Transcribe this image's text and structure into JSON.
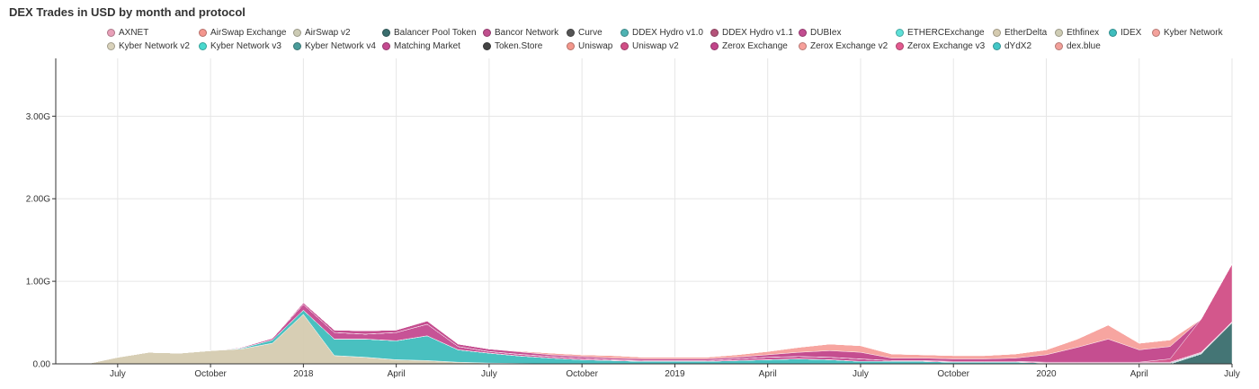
{
  "title": "DEX Trades in USD by month and protocol",
  "colors": {
    "grid": "#e6e6e6",
    "axis": "#333333"
  },
  "chart_data": {
    "type": "area",
    "stacked": true,
    "title": "DEX Trades in USD by month and protocol",
    "xlabel": "",
    "ylabel": "",
    "x": [
      "2017-05",
      "2017-06",
      "2017-07",
      "2017-08",
      "2017-09",
      "2017-10",
      "2017-11",
      "2017-12",
      "2018-01",
      "2018-02",
      "2018-03",
      "2018-04",
      "2018-05",
      "2018-06",
      "2018-07",
      "2018-08",
      "2018-09",
      "2018-10",
      "2018-11",
      "2018-12",
      "2019-01",
      "2019-02",
      "2019-03",
      "2019-04",
      "2019-05",
      "2019-06",
      "2019-07",
      "2019-08",
      "2019-09",
      "2019-10",
      "2019-11",
      "2019-12",
      "2020-01",
      "2020-02",
      "2020-03",
      "2020-04",
      "2020-05",
      "2020-06",
      "2020-07"
    ],
    "x_ticks": [
      {
        "value": "2017-07",
        "label": "July"
      },
      {
        "value": "2017-10",
        "label": "October"
      },
      {
        "value": "2018-01",
        "label": "2018"
      },
      {
        "value": "2018-04",
        "label": "April"
      },
      {
        "value": "2018-07",
        "label": "July"
      },
      {
        "value": "2018-10",
        "label": "October"
      },
      {
        "value": "2019-01",
        "label": "2019"
      },
      {
        "value": "2019-04",
        "label": "April"
      },
      {
        "value": "2019-07",
        "label": "July"
      },
      {
        "value": "2019-10",
        "label": "October"
      },
      {
        "value": "2020-01",
        "label": "2020"
      },
      {
        "value": "2020-04",
        "label": "April"
      },
      {
        "value": "2020-07",
        "label": "July"
      }
    ],
    "y_ticks": [
      {
        "value": 0,
        "label": "0.00"
      },
      {
        "value": 1000000000,
        "label": "1.00G"
      },
      {
        "value": 2000000000,
        "label": "2.00G"
      },
      {
        "value": 3000000000,
        "label": "3.00G"
      }
    ],
    "ylim": [
      0,
      3700000000
    ],
    "grid": true,
    "legend_position": "top",
    "series": [
      {
        "name": "AXNET",
        "color": "#e8a0b8",
        "values": [
          0,
          0,
          0,
          0,
          0,
          0,
          0,
          0,
          0,
          0,
          0,
          0,
          0,
          0,
          0,
          0,
          0,
          0,
          0,
          0,
          0,
          0,
          0,
          0,
          0,
          0,
          0,
          0,
          0,
          0,
          0,
          0,
          0,
          0,
          0,
          0,
          0,
          0,
          0
        ]
      },
      {
        "name": "AirSwap Exchange",
        "color": "#f4968e",
        "values": [
          0,
          0,
          0,
          0,
          0,
          0,
          0,
          0,
          0,
          0,
          0,
          0,
          0,
          0,
          0,
          0,
          0,
          0,
          0,
          0,
          0,
          0,
          0,
          0,
          0,
          0,
          0,
          0,
          0,
          0,
          0,
          0,
          0,
          0,
          0,
          0,
          0,
          0,
          0
        ]
      },
      {
        "name": "AirSwap v2",
        "color": "#cccbb4",
        "values": [
          0,
          0,
          0,
          0,
          0,
          0,
          0,
          0,
          0,
          0,
          0,
          0,
          0,
          0,
          0,
          0,
          0,
          0,
          0,
          0,
          0,
          0,
          0,
          0,
          0,
          0,
          0,
          0,
          0,
          0,
          0,
          0,
          0,
          0,
          0,
          0,
          0,
          0,
          0
        ]
      },
      {
        "name": "Balancer Pool Token",
        "color": "#3a6e6e",
        "values": [
          0,
          0,
          0,
          0,
          0,
          0,
          0,
          0,
          0,
          0,
          0,
          0,
          0,
          0,
          0,
          0,
          0,
          0,
          0,
          0,
          0,
          0,
          0,
          0,
          0,
          0,
          0,
          0,
          0,
          0,
          0,
          0,
          0,
          0,
          0,
          0,
          0,
          120000000,
          500000000
        ]
      },
      {
        "name": "Bancor Network",
        "color": "#c04f8e",
        "values": [
          0,
          0,
          0,
          0,
          0,
          0,
          0,
          0,
          0,
          0,
          0,
          0,
          0,
          0,
          0,
          0,
          0,
          0,
          0,
          0,
          0,
          0,
          0,
          0,
          0,
          0,
          0,
          0,
          0,
          0,
          0,
          0,
          0,
          0,
          0,
          0,
          0,
          0,
          0
        ]
      },
      {
        "name": "Curve",
        "color": "#555555",
        "values": [
          0,
          0,
          0,
          0,
          0,
          0,
          0,
          0,
          0,
          0,
          0,
          0,
          0,
          0,
          0,
          0,
          0,
          0,
          0,
          0,
          0,
          0,
          0,
          0,
          0,
          0,
          0,
          0,
          0,
          0,
          0,
          0,
          0,
          0,
          0,
          0,
          0,
          0,
          0
        ]
      },
      {
        "name": "DDEX Hydro v1.0",
        "color": "#4fb3b3",
        "values": [
          0,
          0,
          0,
          0,
          0,
          0,
          0,
          0,
          0,
          0,
          0,
          0,
          0,
          0,
          0,
          0,
          0,
          0,
          0,
          0,
          0,
          0,
          0,
          0,
          0,
          0,
          0,
          0,
          0,
          0,
          0,
          0,
          0,
          0,
          0,
          0,
          0,
          0,
          0
        ]
      },
      {
        "name": "DDEX Hydro v1.1",
        "color": "#b5537a",
        "values": [
          0,
          0,
          0,
          0,
          0,
          0,
          0,
          0,
          0,
          0,
          0,
          0,
          0,
          0,
          0,
          0,
          0,
          0,
          0,
          0,
          0,
          0,
          0,
          0,
          0,
          0,
          0,
          0,
          0,
          0,
          0,
          0,
          0,
          0,
          0,
          0,
          0,
          0,
          0
        ]
      },
      {
        "name": "DUBIex",
        "color": "#c24d90",
        "values": [
          0,
          0,
          0,
          0,
          0,
          0,
          0,
          0,
          0,
          0,
          0,
          0,
          0,
          0,
          0,
          0,
          0,
          0,
          0,
          0,
          0,
          0,
          0,
          0,
          0,
          0,
          0,
          0,
          0,
          0,
          0,
          0,
          0,
          0,
          0,
          0,
          0,
          0,
          0
        ]
      },
      {
        "name": "ETHERCExchange",
        "color": "#5ee0d8",
        "values": [
          0,
          0,
          0,
          0,
          0,
          0,
          0,
          0,
          0,
          0,
          0,
          0,
          0,
          0,
          0,
          0,
          0,
          0,
          0,
          0,
          0,
          0,
          0,
          0,
          0,
          0,
          0,
          0,
          0,
          0,
          0,
          0,
          0,
          0,
          0,
          0,
          0,
          0,
          0
        ]
      },
      {
        "name": "EtherDelta",
        "color": "#d5cbb0",
        "values": [
          0,
          0,
          80000000,
          140000000,
          130000000,
          160000000,
          180000000,
          250000000,
          600000000,
          100000000,
          80000000,
          50000000,
          40000000,
          20000000,
          10000000,
          5000000,
          0,
          0,
          0,
          0,
          0,
          0,
          0,
          0,
          0,
          0,
          0,
          0,
          0,
          0,
          0,
          0,
          0,
          0,
          0,
          0,
          0,
          0,
          0
        ]
      },
      {
        "name": "Ethfinex",
        "color": "#cfcdb5",
        "values": [
          0,
          0,
          0,
          0,
          0,
          0,
          0,
          0,
          0,
          0,
          0,
          0,
          0,
          0,
          0,
          0,
          0,
          0,
          0,
          0,
          0,
          0,
          0,
          0,
          0,
          0,
          0,
          0,
          0,
          0,
          0,
          0,
          0,
          0,
          0,
          0,
          0,
          0,
          0
        ]
      },
      {
        "name": "IDEX",
        "color": "#3fbdbd",
        "values": [
          0,
          0,
          0,
          0,
          0,
          0,
          10000000,
          40000000,
          50000000,
          200000000,
          220000000,
          230000000,
          300000000,
          150000000,
          120000000,
          90000000,
          70000000,
          50000000,
          40000000,
          30000000,
          30000000,
          30000000,
          40000000,
          50000000,
          60000000,
          50000000,
          30000000,
          30000000,
          30000000,
          20000000,
          20000000,
          20000000,
          10000000,
          10000000,
          10000000,
          10000000,
          10000000,
          10000000,
          0
        ]
      },
      {
        "name": "Kyber Network",
        "color": "#f4a29c",
        "values": [
          0,
          0,
          0,
          0,
          0,
          0,
          0,
          0,
          0,
          0,
          0,
          0,
          0,
          0,
          0,
          0,
          0,
          0,
          0,
          0,
          0,
          0,
          0,
          0,
          0,
          0,
          0,
          0,
          0,
          0,
          0,
          0,
          0,
          0,
          0,
          0,
          0,
          0,
          0
        ]
      },
      {
        "name": "Kyber Network v2",
        "color": "#d9d2bb",
        "values": [
          0,
          0,
          0,
          0,
          0,
          0,
          0,
          0,
          0,
          0,
          0,
          0,
          0,
          0,
          0,
          0,
          0,
          0,
          0,
          0,
          0,
          0,
          0,
          0,
          0,
          0,
          0,
          0,
          0,
          0,
          0,
          0,
          0,
          0,
          0,
          0,
          0,
          0,
          0
        ]
      },
      {
        "name": "Kyber Network v3",
        "color": "#49d9ce",
        "values": [
          0,
          0,
          0,
          0,
          0,
          0,
          0,
          0,
          0,
          0,
          0,
          0,
          0,
          0,
          0,
          0,
          0,
          0,
          0,
          0,
          0,
          0,
          0,
          0,
          0,
          0,
          0,
          0,
          0,
          0,
          0,
          0,
          0,
          0,
          0,
          0,
          0,
          0,
          0
        ]
      },
      {
        "name": "Kyber Network v4",
        "color": "#4a9c9a",
        "values": [
          0,
          0,
          0,
          0,
          0,
          0,
          0,
          0,
          0,
          0,
          0,
          0,
          0,
          0,
          0,
          0,
          0,
          0,
          0,
          0,
          0,
          0,
          0,
          0,
          0,
          0,
          0,
          0,
          0,
          0,
          0,
          0,
          0,
          0,
          0,
          0,
          0,
          0,
          0
        ]
      },
      {
        "name": "Matching Market",
        "color": "#c44a90",
        "values": [
          0,
          0,
          0,
          0,
          0,
          0,
          10000000,
          20000000,
          70000000,
          80000000,
          60000000,
          100000000,
          140000000,
          40000000,
          20000000,
          20000000,
          20000000,
          20000000,
          10000000,
          10000000,
          10000000,
          10000000,
          20000000,
          30000000,
          30000000,
          30000000,
          30000000,
          10000000,
          10000000,
          10000000,
          10000000,
          10000000,
          10000000,
          10000000,
          10000000,
          10000000,
          10000000,
          10000000,
          10000000
        ]
      },
      {
        "name": "Token.Store",
        "color": "#444444",
        "values": [
          0,
          0,
          0,
          0,
          0,
          0,
          0,
          0,
          0,
          0,
          0,
          0,
          0,
          0,
          0,
          0,
          0,
          0,
          0,
          0,
          0,
          0,
          0,
          0,
          0,
          0,
          0,
          0,
          0,
          0,
          0,
          0,
          0,
          0,
          0,
          0,
          0,
          0,
          0
        ]
      },
      {
        "name": "Uniswap",
        "color": "#f3978c",
        "values": [
          0,
          0,
          0,
          0,
          0,
          0,
          0,
          0,
          0,
          0,
          0,
          0,
          0,
          0,
          0,
          0,
          0,
          0,
          0,
          0,
          0,
          0,
          0,
          0,
          0,
          0,
          0,
          0,
          0,
          0,
          0,
          0,
          0,
          0,
          0,
          0,
          0,
          0,
          0
        ]
      },
      {
        "name": "Uniswap v2",
        "color": "#d14e86",
        "values": [
          0,
          0,
          0,
          0,
          0,
          0,
          0,
          0,
          0,
          0,
          0,
          0,
          0,
          0,
          0,
          0,
          0,
          0,
          0,
          0,
          0,
          0,
          0,
          0,
          0,
          0,
          0,
          0,
          0,
          0,
          0,
          0,
          0,
          0,
          0,
          0,
          40000000,
          400000000,
          700000000
        ]
      },
      {
        "name": "Zerox Exchange",
        "color": "#c2458a",
        "values": [
          0,
          0,
          0,
          0,
          0,
          0,
          0,
          0,
          20000000,
          30000000,
          40000000,
          30000000,
          40000000,
          30000000,
          30000000,
          30000000,
          20000000,
          20000000,
          20000000,
          20000000,
          20000000,
          20000000,
          20000000,
          30000000,
          50000000,
          80000000,
          80000000,
          30000000,
          30000000,
          30000000,
          30000000,
          40000000,
          90000000,
          180000000,
          280000000,
          150000000,
          150000000,
          0,
          0
        ]
      },
      {
        "name": "Zerox Exchange v2",
        "color": "#f7a09b",
        "values": [
          0,
          0,
          0,
          0,
          0,
          0,
          0,
          0,
          0,
          0,
          0,
          0,
          0,
          0,
          0,
          10000000,
          20000000,
          20000000,
          30000000,
          20000000,
          20000000,
          20000000,
          30000000,
          40000000,
          60000000,
          80000000,
          80000000,
          50000000,
          40000000,
          40000000,
          40000000,
          50000000,
          60000000,
          100000000,
          170000000,
          80000000,
          80000000,
          0,
          0
        ]
      },
      {
        "name": "Zerox Exchange v3",
        "color": "#e35a8f",
        "values": [
          0,
          0,
          0,
          0,
          0,
          0,
          0,
          0,
          0,
          0,
          0,
          0,
          0,
          0,
          0,
          0,
          0,
          0,
          0,
          0,
          0,
          0,
          0,
          0,
          0,
          0,
          0,
          0,
          0,
          0,
          0,
          0,
          0,
          0,
          0,
          0,
          0,
          0,
          0
        ]
      },
      {
        "name": "dYdX2",
        "color": "#43c7c7",
        "values": [
          0,
          0,
          0,
          0,
          0,
          0,
          0,
          0,
          0,
          0,
          0,
          0,
          0,
          0,
          0,
          0,
          0,
          0,
          0,
          0,
          0,
          0,
          0,
          0,
          0,
          0,
          0,
          0,
          0,
          0,
          0,
          0,
          0,
          0,
          0,
          0,
          0,
          0,
          0
        ]
      },
      {
        "name": "dex.blue",
        "color": "#f2a09a",
        "values": [
          0,
          0,
          0,
          0,
          0,
          0,
          0,
          0,
          0,
          0,
          0,
          0,
          0,
          0,
          0,
          0,
          0,
          0,
          0,
          0,
          0,
          0,
          0,
          0,
          0,
          0,
          0,
          0,
          0,
          0,
          0,
          0,
          0,
          0,
          0,
          0,
          0,
          0,
          0
        ]
      }
    ]
  }
}
